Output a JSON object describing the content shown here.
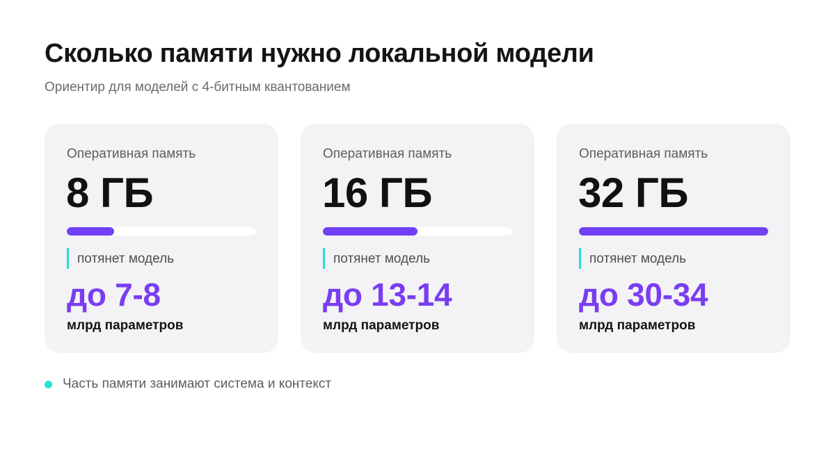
{
  "header": {
    "title": "Сколько памяти нужно локальной модели",
    "subtitle": "Ориентир для моделей с 4-битным квантованием"
  },
  "cards": [
    {
      "label": "Оперативная память",
      "ram": "8 ГБ",
      "ram_fill_fraction": 0.25,
      "caption": "потянет модель",
      "range": "до 7-8",
      "unit": "млрд параметров"
    },
    {
      "label": "Оперативная память",
      "ram": "16 ГБ",
      "ram_fill_fraction": 0.5,
      "caption": "потянет модель",
      "range": "до 13-14",
      "unit": "млрд параметров"
    },
    {
      "label": "Оперативная память",
      "ram": "32 ГБ",
      "ram_fill_fraction": 1.0,
      "caption": "потянет модель",
      "range": "до 30-34",
      "unit": "млрд параметров"
    }
  ],
  "footer": {
    "note": "Часть памяти занимают система и контекст",
    "bullet_icon": "dot-icon"
  },
  "colors": {
    "accent_purple": "#7a3df2",
    "bar_fill": "#7041f4",
    "accent_teal": "#22e3cf",
    "card_background": "#f3f3f5"
  }
}
